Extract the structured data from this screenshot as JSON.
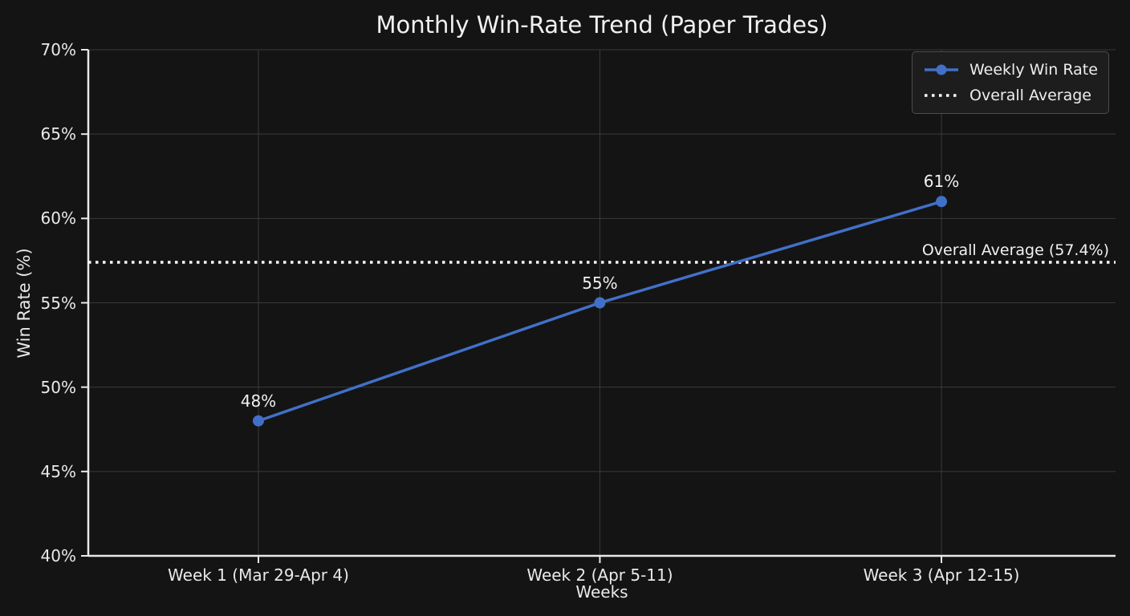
{
  "chart_data": {
    "type": "line",
    "title": "Monthly Win-Rate Trend (Paper Trades)",
    "xlabel": "Weeks",
    "ylabel": "Win Rate (%)",
    "categories": [
      "Week 1 (Mar 29-Apr 4)",
      "Week 2 (Apr 5-11)",
      "Week 3 (Apr 12-15)"
    ],
    "series": [
      {
        "name": "Weekly Win Rate",
        "values": [
          48,
          55,
          61
        ],
        "point_labels": [
          "48%",
          "55%",
          "61%"
        ]
      }
    ],
    "average_line": {
      "value": 57.4,
      "label": "Overall Average (57.4%)",
      "style": "dotted"
    },
    "ylim": [
      40,
      70
    ],
    "yticks": [
      40,
      45,
      50,
      55,
      60,
      65,
      70
    ],
    "ytick_labels": [
      "40%",
      "45%",
      "50%",
      "55%",
      "60%",
      "65%",
      "70%"
    ],
    "grid": true,
    "legend": {
      "position": "upper right",
      "entries": [
        {
          "label": "Weekly Win Rate",
          "style": "solid-marker"
        },
        {
          "label": "Overall Average",
          "style": "dotted"
        }
      ]
    },
    "colors": {
      "background": "#141414",
      "text": "#e9e9e9",
      "grid": "#3a3a3a",
      "spine": "#e9e9e9",
      "series": "#4170c8",
      "average": "#ffffff",
      "legend_bg": "#1d1d1d",
      "legend_border": "#4d4d4d"
    }
  }
}
